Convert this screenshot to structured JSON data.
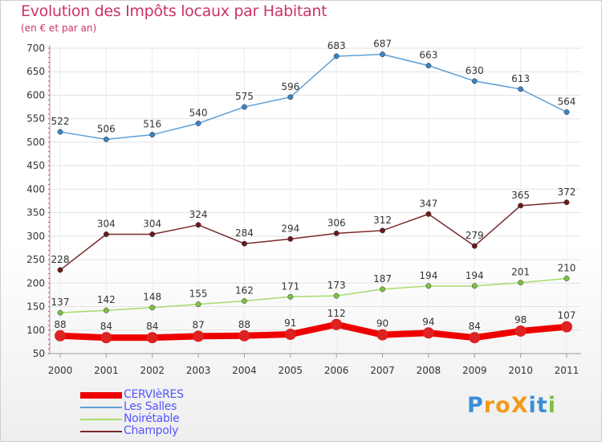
{
  "header": {
    "title": "Evolution des Impôts locaux par Habitant",
    "subtitle": "(en € et par an)"
  },
  "logo": {
    "text": "ProXiti",
    "letters": [
      {
        "ch": "P",
        "color": "#3b8ed8"
      },
      {
        "ch": "r",
        "color": "#f39a1e"
      },
      {
        "ch": "o",
        "color": "#f39a1e"
      },
      {
        "ch": "X",
        "color": "#f39a1e"
      },
      {
        "ch": "i",
        "color": "#3b8ed8"
      },
      {
        "ch": "t",
        "color": "#3b8ed8"
      },
      {
        "ch": "i",
        "color": "#7cc142"
      }
    ]
  },
  "chart_data": {
    "type": "line",
    "title": "Evolution des Impôts locaux par Habitant",
    "subtitle": "(en € et par an)",
    "x": [
      "2000",
      "2001",
      "2002",
      "2003",
      "2004",
      "2005",
      "2006",
      "2007",
      "2008",
      "2009",
      "2010",
      "2011"
    ],
    "ylim": [
      50,
      700
    ],
    "yticks": [
      50,
      100,
      150,
      200,
      250,
      300,
      350,
      400,
      450,
      500,
      550,
      600,
      650,
      700
    ],
    "grid": true,
    "legend_position": "bottom-left",
    "series": [
      {
        "name": "CERVIèRES",
        "color": "#ee0000",
        "marker": "#dd2222",
        "values": [
          88,
          84,
          84,
          87,
          88,
          91,
          112,
          90,
          94,
          84,
          98,
          107
        ]
      },
      {
        "name": "Les Salles",
        "color": "#5e9fd6",
        "marker": "#3a84c4",
        "values": [
          522,
          506,
          516,
          540,
          575,
          596,
          683,
          687,
          663,
          630,
          613,
          564
        ]
      },
      {
        "name": "Noirétable",
        "color": "#a6dc6c",
        "marker": "#7cc142",
        "values": [
          137,
          142,
          148,
          155,
          162,
          171,
          173,
          187,
          194,
          194,
          201,
          210
        ]
      },
      {
        "name": "Champoly",
        "color": "#7a2a2a",
        "marker": "#6b1a1a",
        "values": [
          228,
          304,
          304,
          324,
          284,
          294,
          306,
          312,
          347,
          279,
          365,
          372
        ]
      }
    ]
  }
}
